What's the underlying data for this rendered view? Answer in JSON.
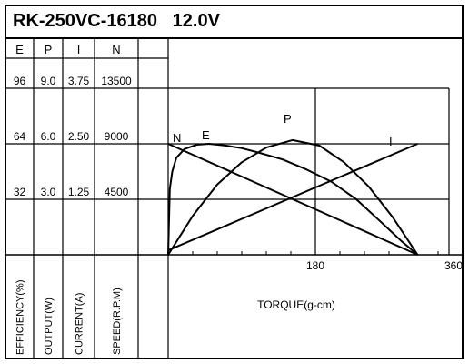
{
  "chart_data": {
    "type": "line",
    "title": "RK-250VC-16180   12.0V",
    "scale_columns": [
      {
        "header": "E",
        "axis_label": "EFFICIENCY(%)",
        "ticks": [
          "96",
          "64",
          "32"
        ]
      },
      {
        "header": "P",
        "axis_label": "OUTPUT(W)",
        "ticks": [
          "9.0",
          "6.0",
          "3.0"
        ]
      },
      {
        "header": "I",
        "axis_label": "CURRENT(A)",
        "ticks": [
          "3.75",
          "2.50",
          "1.25"
        ]
      },
      {
        "header": "N",
        "axis_label": "SPEED(R.P.M)",
        "ticks": [
          "13500",
          "9000",
          "4500"
        ]
      }
    ],
    "xlabel": "TORQUE(g-cm)",
    "x_ticks": [
      "180",
      "360"
    ],
    "xlim": [
      0,
      360
    ],
    "grid": true,
    "series": [
      {
        "name": "N",
        "x": [
          0,
          305
        ],
        "y": [
          9000,
          0
        ]
      },
      {
        "name": "I",
        "x": [
          0,
          305
        ],
        "y": [
          0.1,
          2.5
        ]
      },
      {
        "name": "P",
        "x": [
          0,
          30,
          60,
          90,
          120,
          152,
          185,
          215,
          245,
          275,
          305
        ],
        "y": [
          0,
          2.1,
          3.8,
          5.0,
          5.8,
          6.2,
          5.9,
          5.0,
          3.7,
          2.0,
          0
        ]
      },
      {
        "name": "E",
        "x": [
          0,
          2,
          5,
          10,
          20,
          35,
          50,
          70,
          90,
          110,
          140,
          170,
          200,
          230,
          260,
          285,
          305
        ],
        "y": [
          0,
          38,
          48,
          56,
          61,
          63.5,
          64,
          63,
          61.5,
          59,
          55,
          49,
          42,
          32,
          19,
          8,
          0
        ]
      }
    ]
  }
}
